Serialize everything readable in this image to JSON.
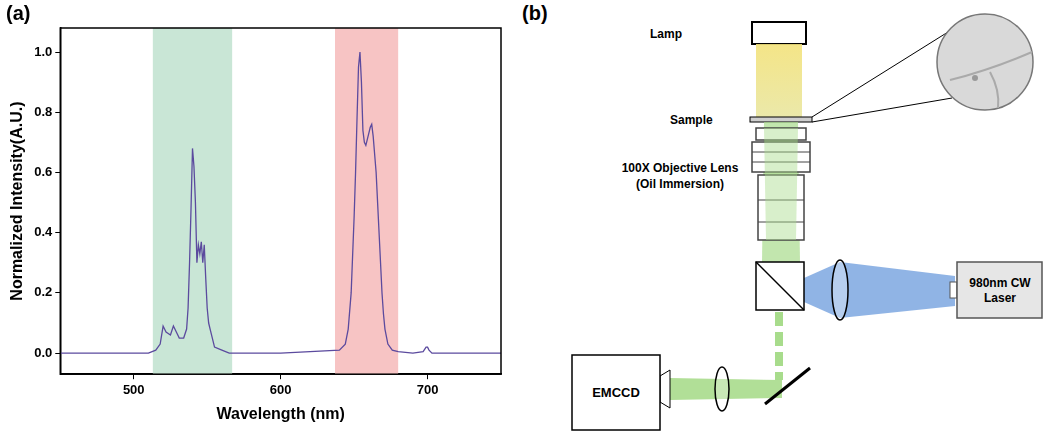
{
  "chart_data": {
    "panel_label": "(a)",
    "type": "line",
    "x_label": "Wavelength (nm)",
    "y_label": "Normalized Intensity(A.U.)",
    "x": [
      450,
      480,
      510,
      515,
      518,
      520,
      522,
      525,
      527,
      529,
      531,
      534,
      536,
      537,
      538,
      539,
      540,
      541,
      542,
      543,
      544,
      545,
      546,
      547,
      548,
      549,
      550,
      551,
      552,
      553,
      555,
      560,
      565,
      600,
      640,
      644,
      646,
      648,
      650,
      651,
      652,
      653,
      654,
      655,
      656,
      657,
      658,
      659,
      660,
      661,
      662,
      663,
      664,
      665,
      666,
      667,
      668,
      669,
      670,
      671,
      673,
      676,
      680,
      690,
      697,
      699,
      700,
      701,
      703,
      720,
      750
    ],
    "values": [
      0.0,
      0.0,
      0.0,
      0.01,
      0.03,
      0.09,
      0.07,
      0.06,
      0.09,
      0.07,
      0.05,
      0.05,
      0.08,
      0.15,
      0.3,
      0.48,
      0.68,
      0.62,
      0.5,
      0.3,
      0.36,
      0.33,
      0.37,
      0.3,
      0.36,
      0.25,
      0.15,
      0.1,
      0.08,
      0.06,
      0.02,
      0.01,
      0.0,
      0.0,
      0.01,
      0.03,
      0.08,
      0.2,
      0.45,
      0.6,
      0.78,
      0.95,
      1.0,
      0.9,
      0.74,
      0.7,
      0.69,
      0.71,
      0.73,
      0.75,
      0.76,
      0.72,
      0.66,
      0.6,
      0.5,
      0.4,
      0.3,
      0.2,
      0.13,
      0.08,
      0.03,
      0.01,
      0.005,
      0.0,
      0.005,
      0.02,
      0.02,
      0.01,
      0.0,
      0.0,
      0.0
    ],
    "color": "#5b4a9e",
    "xlim": [
      450,
      750
    ],
    "xticks": [
      500,
      600,
      700
    ],
    "ylim": [
      -0.07,
      1.08
    ],
    "yticks": [
      {
        "value": 0,
        "label": "0.0"
      },
      0.2,
      0.4,
      0.6,
      0.8,
      {
        "value": 1,
        "label": "1.0"
      }
    ],
    "grid": false,
    "bands": [
      {
        "xmin": 513,
        "xmax": 567,
        "color": "#c9e6d6"
      },
      {
        "xmin": 637,
        "xmax": 680,
        "color": "#f7c4c4"
      }
    ]
  },
  "diagram": {
    "panel_label": "(b)",
    "lamp": "Lamp",
    "sample": "Sample",
    "objective": [
      "100X Objective Lens",
      "(Oil Immersion)"
    ],
    "laser": [
      "980nm CW",
      "Laser"
    ],
    "camera": "EMCCD"
  }
}
